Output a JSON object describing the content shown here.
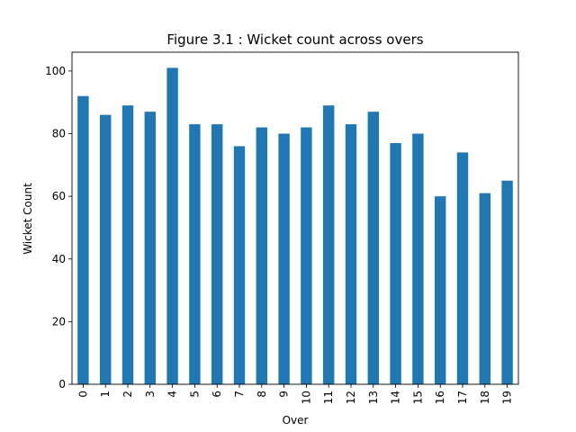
{
  "chart_data": {
    "type": "bar",
    "title": "Figure 3.1 : Wicket count across overs",
    "xlabel": "Over",
    "ylabel": "Wicket Count",
    "categories": [
      "0",
      "1",
      "2",
      "3",
      "4",
      "5",
      "6",
      "7",
      "8",
      "9",
      "10",
      "11",
      "12",
      "13",
      "14",
      "15",
      "16",
      "17",
      "18",
      "19"
    ],
    "values": [
      92,
      86,
      89,
      87,
      101,
      83,
      83,
      76,
      82,
      80,
      82,
      89,
      83,
      87,
      77,
      80,
      60,
      74,
      61,
      65
    ],
    "ylim": [
      0,
      106
    ],
    "yticks": [
      0,
      20,
      40,
      60,
      80,
      100
    ],
    "grid": false,
    "legend": false,
    "bar_color": "#1f77b4",
    "xtick_rotation": "vertical"
  }
}
